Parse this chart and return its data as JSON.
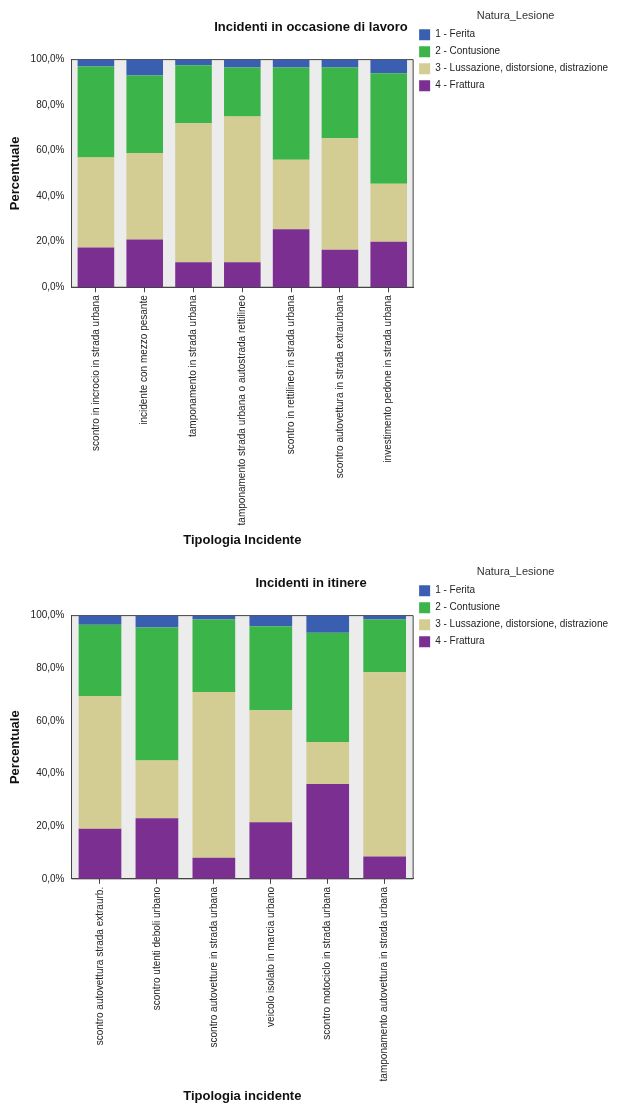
{
  "chart_data": [
    {
      "type": "bar",
      "title": "Incidenti in occasione di lavoro",
      "xlabel": "Tipologia Incidente",
      "ylabel": "Percentuale",
      "legend_title": "Natura_Lesione",
      "stacked": true,
      "legend": "right",
      "grid": false,
      "categories": [
        "scontro in incrocio in strada urbana",
        "incidente con mezzo pesante",
        "tamponamento in strada urbana",
        "tamponamento strada urbana o autostrada rettilineo",
        "scontro in rettilineo in strada urbana",
        "scontro autovettura in strada extraurbana",
        "investimento pedone in strada urbana"
      ],
      "ylim": [
        0,
        100
      ],
      "yticks": [
        {
          "value": 0,
          "label": "0,0%"
        },
        {
          "value": 20,
          "label": "20,0%"
        },
        {
          "value": 40,
          "label": "40,0%"
        },
        {
          "value": 60,
          "label": "60,0%"
        },
        {
          "value": 80,
          "label": "80,0%"
        },
        {
          "value": 100,
          "label": "100,0%"
        }
      ],
      "series": [
        {
          "name": "4 - Frattura",
          "color": "#7a2f91",
          "values": [
            17.5,
            21,
            11,
            11,
            25.5,
            16.5,
            20
          ]
        },
        {
          "name": "3 - Lussazione, distorsione, distrazione",
          "color": "#d3cc93",
          "values": [
            39.5,
            38,
            61,
            64,
            30.5,
            49,
            25.5
          ]
        },
        {
          "name": "2 - Contusione",
          "color": "#3bb54a",
          "values": [
            40,
            34,
            25.5,
            21.5,
            40.5,
            31,
            48.5
          ]
        },
        {
          "name": "1 - Ferita",
          "color": "#3a5fb0",
          "values": [
            3,
            7,
            2.5,
            3.5,
            3.5,
            3.5,
            6
          ]
        }
      ]
    },
    {
      "type": "bar",
      "title": "Incidenti in itinere",
      "xlabel": "Tipologia incidente",
      "ylabel": "Percentuale",
      "legend_title": "Natura_Lesione",
      "stacked": true,
      "legend": "right",
      "grid": false,
      "categories": [
        "scontro autovettura strada extraurb.",
        "scontro utenti deboli urbano",
        "scontro autovetture in strada urbana",
        "veicolo isolato in marcia urbano",
        "scontro motociclo in strada urbana",
        "tamponamento autovettura in strada urbana"
      ],
      "ylim": [
        0,
        100
      ],
      "yticks": [
        {
          "value": 0,
          "label": "0,0%"
        },
        {
          "value": 20,
          "label": "20,0%"
        },
        {
          "value": 40,
          "label": "40,0%"
        },
        {
          "value": 60,
          "label": "60,0%"
        },
        {
          "value": 80,
          "label": "80,0%"
        },
        {
          "value": 100,
          "label": "100,0%"
        }
      ],
      "series": [
        {
          "name": "4 - Frattura",
          "color": "#7a2f91",
          "values": [
            19,
            23,
            8,
            21.5,
            36,
            8.5
          ]
        },
        {
          "name": "3 - Lussazione, distorsione, distrazione",
          "color": "#d3cc93",
          "values": [
            50.5,
            22,
            63,
            42.5,
            16,
            70
          ]
        },
        {
          "name": "2 - Contusione",
          "color": "#3bb54a",
          "values": [
            27,
            50.5,
            27.5,
            32,
            41.5,
            20
          ]
        },
        {
          "name": "1 - Ferita",
          "color": "#3a5fb0",
          "values": [
            3.5,
            4.5,
            1.5,
            4,
            6.5,
            1.5
          ]
        }
      ]
    }
  ]
}
